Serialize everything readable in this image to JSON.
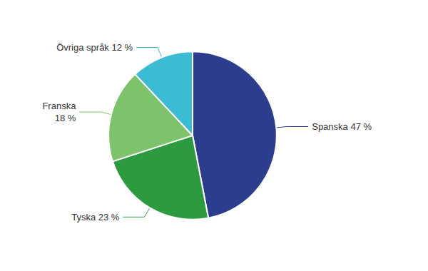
{
  "chart_data": {
    "type": "pie",
    "categories": [
      "Spanska 47 %",
      "Tyska 23 %",
      "Franska\n18 %",
      "Övriga språk 12 %"
    ],
    "values": [
      47,
      23,
      18,
      12
    ],
    "colors": [
      "#2d3d8e",
      "#2d9a40",
      "#7dc36b",
      "#3bbcd4"
    ]
  }
}
